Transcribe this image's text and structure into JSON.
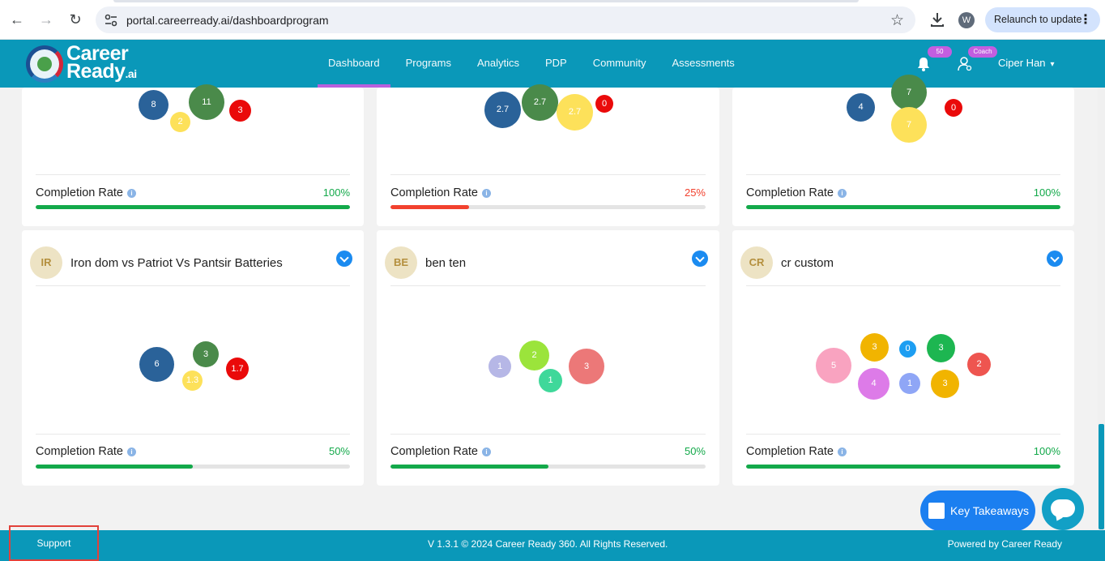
{
  "browser": {
    "url": "portal.careerready.ai/dashboardprogram",
    "profile_initial": "W",
    "relaunch_label": "Relaunch to update"
  },
  "header": {
    "logo_line1": "Career",
    "logo_line2": "Ready",
    "logo_suffix": ".ai",
    "nav": [
      "Dashboard",
      "Programs",
      "Analytics",
      "PDP",
      "Community",
      "Assessments"
    ],
    "active_nav": "Dashboard",
    "notification_count": "50",
    "role_badge": "Coach",
    "user_name": "Ciper Han"
  },
  "cards": [
    {
      "completion_label": "Completion Rate",
      "completion_value": "100%",
      "progress": 1.0,
      "bubbles": [
        "8",
        "2",
        "11",
        "3"
      ]
    },
    {
      "completion_label": "Completion Rate",
      "completion_value": "25%",
      "progress": 0.25,
      "bubbles": [
        "2.7",
        "2.7",
        "2.7",
        "0"
      ]
    },
    {
      "completion_label": "Completion Rate",
      "completion_value": "100%",
      "progress": 1.0,
      "bubbles": [
        "4",
        "7",
        "7",
        "0"
      ]
    },
    {
      "initials": "IR",
      "title": "Iron dom vs Patriot Vs Pantsir Batteries",
      "completion_label": "Completion Rate",
      "completion_value": "50%",
      "progress": 0.5,
      "bubbles": [
        "6",
        "1.3",
        "3",
        "1.7"
      ]
    },
    {
      "initials": "BE",
      "title": "ben ten",
      "completion_label": "Completion Rate",
      "completion_value": "50%",
      "progress": 0.5,
      "bubbles": [
        "1",
        "2",
        "1",
        "3"
      ]
    },
    {
      "initials": "CR",
      "title": "cr custom",
      "completion_label": "Completion Rate",
      "completion_value": "100%",
      "progress": 1.0,
      "bubbles": [
        "5",
        "3",
        "4",
        "0",
        "1",
        "3",
        "3",
        "2"
      ]
    }
  ],
  "floating": {
    "key_takeaways": "Key Takeaways"
  },
  "footer": {
    "support": "Support",
    "copyright": "V 1.3.1 © 2024 Career Ready 360. All Rights Reserved.",
    "powered": "Powered by Career Ready"
  },
  "colors": {
    "brand": "#0a98b9",
    "accent": "#c35ee0",
    "progress_good": "#13a94a",
    "progress_low": "#f2412e"
  }
}
